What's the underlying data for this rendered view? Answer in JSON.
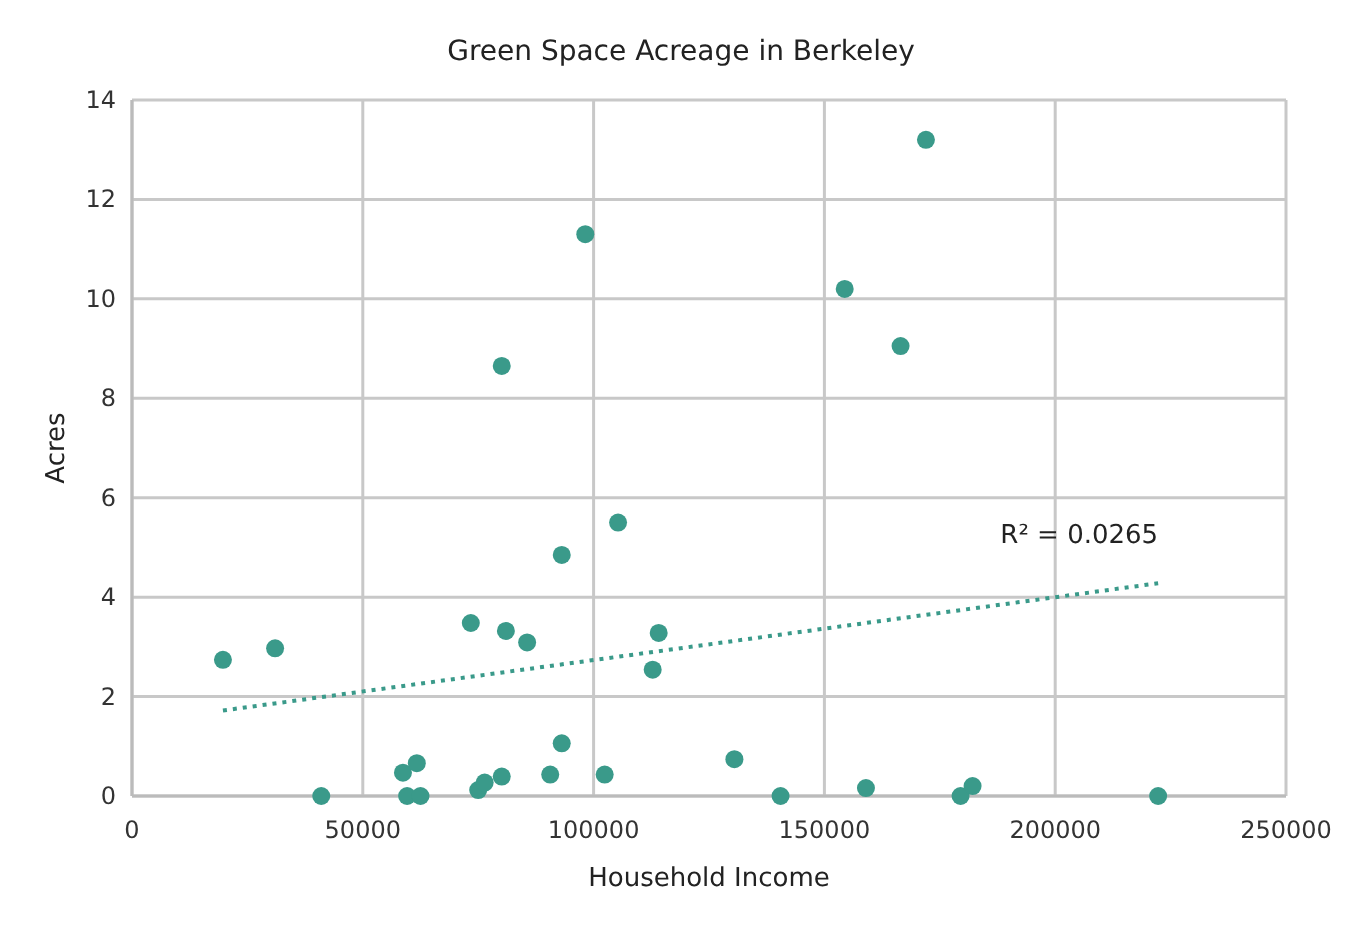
{
  "chart_data": {
    "type": "scatter",
    "title": "Green Space Acreage in Berkeley",
    "xlabel": "Household Income",
    "ylabel": "Acres",
    "xlim": [
      0,
      250000
    ],
    "xticks": [
      0,
      50000,
      100000,
      150000,
      200000,
      250000
    ],
    "ylim": [
      0,
      14
    ],
    "yticks": [
      0,
      2,
      4,
      6,
      8,
      10,
      12,
      14
    ],
    "grid": true,
    "annotations": [
      "R² = 0.0265"
    ],
    "series": [
      {
        "color": "#3a9a8a",
        "marker": "circle",
        "x": [
          19700,
          31000,
          41000,
          58700,
          61700,
          59600,
          62500,
          73400,
          81000,
          85600,
          75000,
          76400,
          80100,
          90600,
          93100,
          102400,
          114100,
          112800,
          130500,
          140500,
          159000,
          179500,
          182100,
          222300,
          172000,
          98200,
          154400,
          166500,
          80100,
          105300,
          93100
        ],
        "values": [
          2.74,
          2.97,
          0,
          0.47,
          0.66,
          0,
          0,
          3.48,
          3.32,
          3.09,
          0.12,
          0.27,
          0.39,
          0.43,
          1.06,
          0.43,
          3.28,
          2.54,
          0.74,
          0,
          0.16,
          0,
          0.2,
          0,
          13.2,
          11.3,
          10.2,
          9.05,
          8.65,
          5.5,
          4.85
        ]
      },
      {
        "type": "line",
        "color": "#3a9a8a",
        "marker": "none",
        "line_style": "dotted",
        "x": [
          19700,
          222300
        ],
        "values": [
          1.72,
          4.28
        ]
      }
    ]
  }
}
